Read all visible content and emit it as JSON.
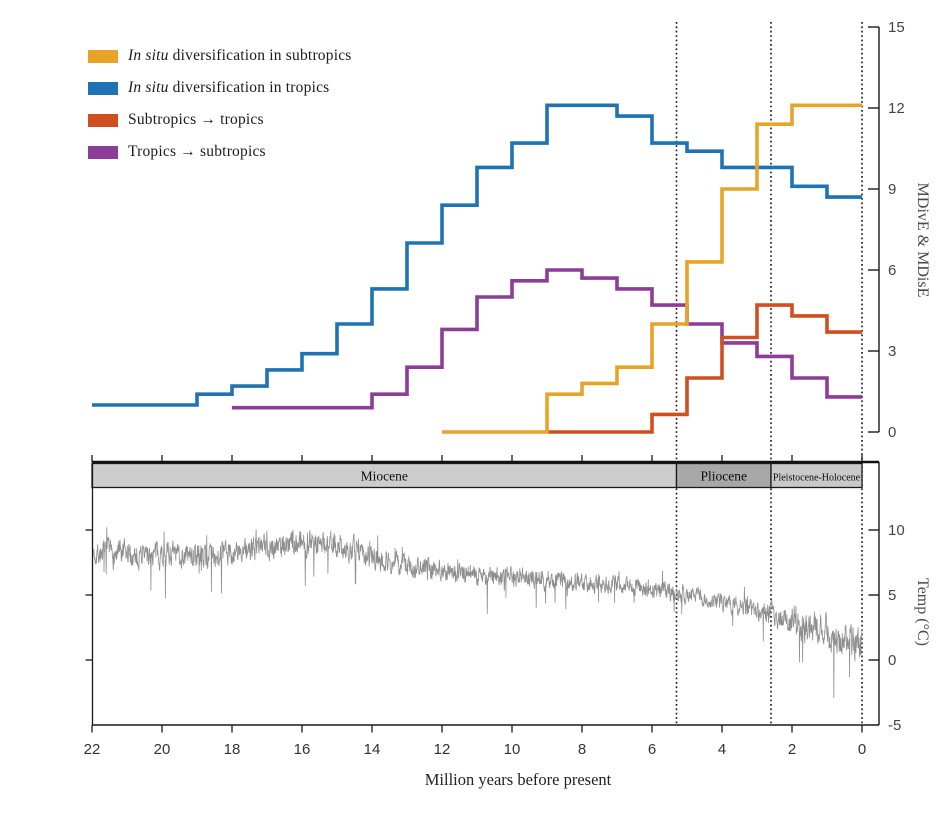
{
  "legend": {
    "items": [
      {
        "color": "#E9A428",
        "italic": "In situ",
        "text": " diversification in subtropics"
      },
      {
        "color": "#1E73B5",
        "italic": "In situ",
        "text": " diversification in tropics"
      },
      {
        "color": "#D14F1E",
        "italic": "",
        "text": "Subtropics → tropics"
      },
      {
        "color": "#8C3D97",
        "italic": "",
        "text": "Tropics → subtropics"
      }
    ]
  },
  "epoch_bar": {
    "epochs": [
      {
        "label": "Miocene",
        "from_ma": 22,
        "to_ma": 5.3,
        "fill": "#cdcdcd"
      },
      {
        "label": "Pliocene",
        "from_ma": 5.3,
        "to_ma": 2.6,
        "fill": "#a8a8a8"
      },
      {
        "label": "Pleistocene-Holocene",
        "from_ma": 2.6,
        "to_ma": 0,
        "fill": "#c9c9c9"
      }
    ]
  },
  "chart_data": [
    {
      "type": "line",
      "subtype": "step",
      "x_axis": {
        "label": "Million years before present",
        "range": [
          22,
          0
        ],
        "ticks": [
          22,
          20,
          18,
          16,
          14,
          12,
          10,
          8,
          6,
          4,
          2,
          0
        ],
        "direction": "reversed"
      },
      "y_axis_right": {
        "label": "MDivE & MDisE",
        "range": [
          0,
          15
        ],
        "ticks": [
          0,
          3,
          6,
          9,
          12,
          15
        ]
      },
      "epoch_boundaries_ma": [
        5.3,
        2.6,
        0
      ],
      "grid": false,
      "legend_position": "top-left",
      "series": [
        {
          "name": "In situ diversification in subtropics",
          "color": "#E9A428",
          "bin_edges_ma": [
            12,
            9,
            8,
            7,
            6,
            5,
            4,
            3,
            2,
            0
          ],
          "values": [
            0,
            1.4,
            1.8,
            2.4,
            4.0,
            6.3,
            9.0,
            11.4,
            12.1
          ]
        },
        {
          "name": "In situ diversification in tropics",
          "color": "#1E73B5",
          "bin_edges_ma": [
            22,
            19,
            18,
            17,
            16,
            15,
            14,
            13,
            12,
            11,
            10,
            9,
            7,
            6,
            5,
            4,
            2,
            1,
            0
          ],
          "values": [
            1.0,
            1.4,
            1.7,
            2.3,
            2.9,
            4.0,
            5.3,
            7.0,
            8.4,
            9.8,
            10.7,
            12.1,
            11.7,
            10.7,
            10.4,
            9.8,
            9.1,
            8.7
          ]
        },
        {
          "name": "Subtropics → tropics",
          "color": "#D14F1E",
          "bin_edges_ma": [
            9,
            6,
            5,
            4,
            3,
            2,
            1,
            0
          ],
          "values": [
            0,
            0.65,
            2.0,
            3.5,
            4.7,
            4.3,
            3.7
          ]
        },
        {
          "name": "Tropics → subtropics",
          "color": "#8C3D97",
          "bin_edges_ma": [
            18,
            14,
            13,
            12,
            11,
            10,
            9,
            8,
            7,
            6,
            5,
            4,
            3,
            2,
            1,
            0
          ],
          "values": [
            0.9,
            1.4,
            2.4,
            3.8,
            5.0,
            5.6,
            6.0,
            5.7,
            5.3,
            4.7,
            4.0,
            3.3,
            2.8,
            2.0,
            1.3
          ]
        }
      ]
    },
    {
      "type": "line",
      "name": "Temperature",
      "color": "#8f8f8f",
      "x_axis_shared": true,
      "y_axis_right": {
        "label": "Temp (°C)",
        "range": [
          -5,
          13
        ],
        "ticks": [
          10,
          5,
          0,
          -5
        ]
      },
      "trend_anchors": {
        "ma": [
          22,
          21,
          20,
          19,
          18,
          17,
          16,
          15,
          14,
          13,
          12,
          11,
          10,
          9,
          8,
          7,
          6,
          5.3,
          4.5,
          3.5,
          2.6,
          2,
          1.5,
          1,
          0.5,
          0
        ],
        "mean": [
          8.3,
          8.0,
          8.2,
          8.0,
          8.2,
          8.7,
          9.1,
          8.9,
          7.9,
          7.2,
          6.9,
          6.6,
          6.3,
          6.2,
          6.0,
          5.8,
          5.5,
          5.2,
          4.7,
          4.2,
          3.5,
          2.9,
          2.5,
          2.1,
          1.6,
          1.0
        ],
        "noise_amplitude": [
          1.0,
          1.1,
          1.0,
          1.0,
          1.0,
          1.1,
          1.1,
          1.0,
          0.9,
          0.9,
          0.8,
          0.8,
          0.8,
          0.8,
          0.7,
          0.7,
          0.7,
          0.7,
          0.7,
          0.7,
          0.9,
          1.1,
          1.2,
          1.3,
          1.4,
          1.5
        ]
      }
    }
  ]
}
